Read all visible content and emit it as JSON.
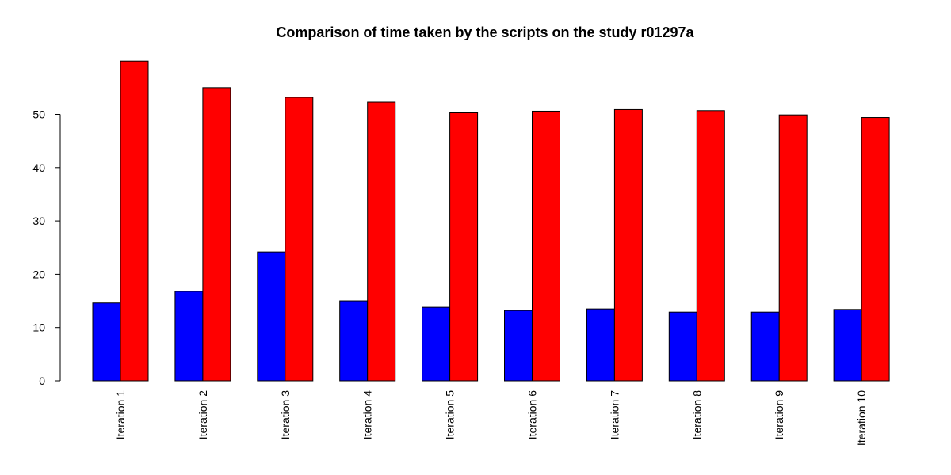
{
  "chart_data": {
    "type": "bar",
    "title": "Comparison of time taken by the scripts on the study r01297a",
    "xlabel": "",
    "ylabel": "",
    "categories": [
      "Iteration 1",
      "Iteration 2",
      "Iteration 3",
      "Iteration 4",
      "Iteration 5",
      "Iteration 6",
      "Iteration 7",
      "Iteration 8",
      "Iteration 9",
      "Iteration 10"
    ],
    "series": [
      {
        "color": "#0000ff",
        "values": [
          14.6,
          16.8,
          24.2,
          15.0,
          13.8,
          13.2,
          13.5,
          12.9,
          12.9,
          13.4
        ]
      },
      {
        "color": "#ff0000",
        "values": [
          60.0,
          55.0,
          53.2,
          52.3,
          50.3,
          50.6,
          50.9,
          50.7,
          49.9,
          49.4
        ]
      }
    ],
    "yticks": [
      0,
      10,
      20,
      30,
      40,
      50
    ],
    "ylim": [
      0,
      60
    ],
    "grid": false,
    "legend": "none"
  }
}
